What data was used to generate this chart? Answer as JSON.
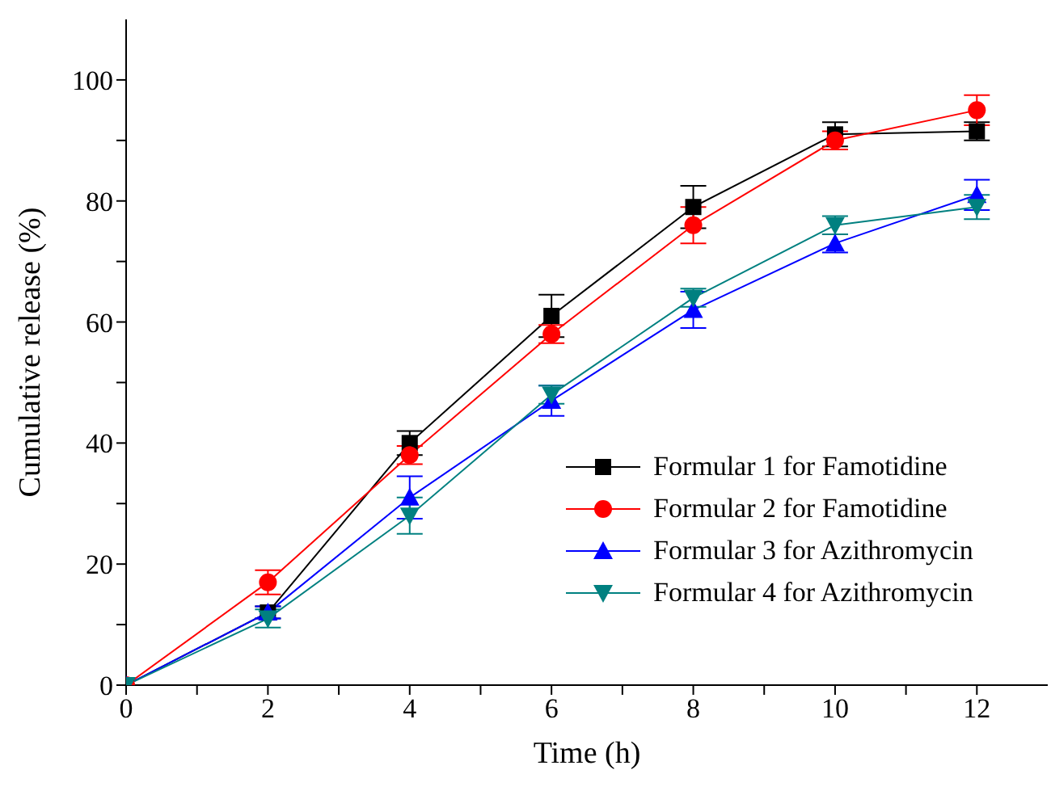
{
  "chart_data": {
    "type": "line",
    "xlabel": "Time (h)",
    "ylabel": "Cumulative release (%)",
    "x": [
      0,
      2,
      4,
      6,
      8,
      10,
      12
    ],
    "xlim": [
      0,
      13
    ],
    "xticks": [
      0,
      {
        "value": 1,
        "label": null
      },
      2,
      {
        "value": 3,
        "label": null
      },
      4,
      {
        "value": 5,
        "label": null
      },
      6,
      {
        "value": 7,
        "label": null
      },
      8,
      {
        "value": 9,
        "label": null
      },
      10,
      {
        "value": 11,
        "label": null
      },
      12
    ],
    "ylim": [
      0,
      110
    ],
    "yticks": [
      0,
      {
        "value": 10,
        "label": null
      },
      20,
      {
        "value": 30,
        "label": null
      },
      40,
      {
        "value": 50,
        "label": null
      },
      60,
      {
        "value": 70,
        "label": null
      },
      80,
      {
        "value": 90,
        "label": null
      },
      100
    ],
    "grid": false,
    "legend": "bottom right",
    "line_style": "solid",
    "series": [
      {
        "name": "Formular 1 for Famotidine",
        "color": "#000000",
        "marker": "square",
        "values": [
          0,
          12,
          40,
          61,
          79,
          91,
          91.5
        ],
        "errors": [
          null,
          1,
          2,
          3.5,
          3.5,
          2,
          1.5
        ]
      },
      {
        "name": "Formular 2 for Famotidine",
        "color": "#ff0000",
        "marker": "circle",
        "values": [
          0,
          17,
          38,
          58,
          76,
          90,
          95
        ],
        "errors": [
          null,
          2,
          1.5,
          1.5,
          3,
          1.5,
          2.5
        ]
      },
      {
        "name": "Formular 3 for Azithromycin",
        "color": "#0000ff",
        "marker": "triangle",
        "values": [
          0,
          12,
          31,
          47,
          62,
          73,
          81
        ],
        "errors": [
          null,
          1,
          3.5,
          2.5,
          3,
          1.5,
          2.5
        ]
      },
      {
        "name": "Formular 4 for Azithromycin",
        "color": "#008080",
        "marker": "triangle-down",
        "values": [
          0,
          11,
          28,
          48,
          64,
          76,
          79
        ],
        "errors": [
          null,
          1.5,
          3,
          1.5,
          1.5,
          1.5,
          2
        ]
      }
    ]
  }
}
